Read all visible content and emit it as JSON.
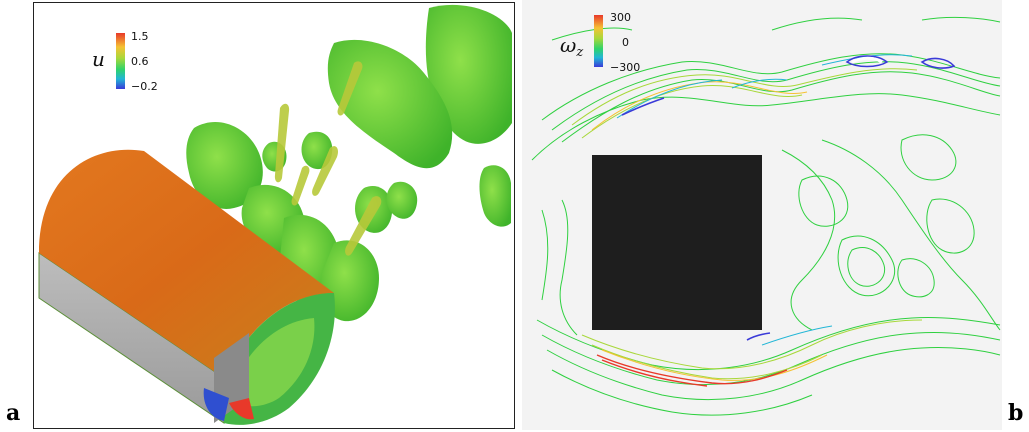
{
  "panel_a": {
    "label": "a",
    "colorbar": {
      "variable": "u",
      "ticks": [
        "1.5",
        "0.6",
        "-0.2"
      ],
      "colors": [
        "#e8392a",
        "#f5c233",
        "#a8d83a",
        "#2fd36a",
        "#22b6d6",
        "#3a3ad8"
      ]
    }
  },
  "panel_b": {
    "label": "b",
    "colorbar": {
      "variable_main": "ω",
      "variable_sub": "z",
      "ticks": [
        "300",
        "0",
        "-300"
      ],
      "colors": [
        "#e8392a",
        "#f5c233",
        "#a8d83a",
        "#2fd36a",
        "#22b6d6",
        "#3a3ad8"
      ]
    },
    "body_color": "#1e1e1e",
    "contour_color": "#2fd040"
  }
}
